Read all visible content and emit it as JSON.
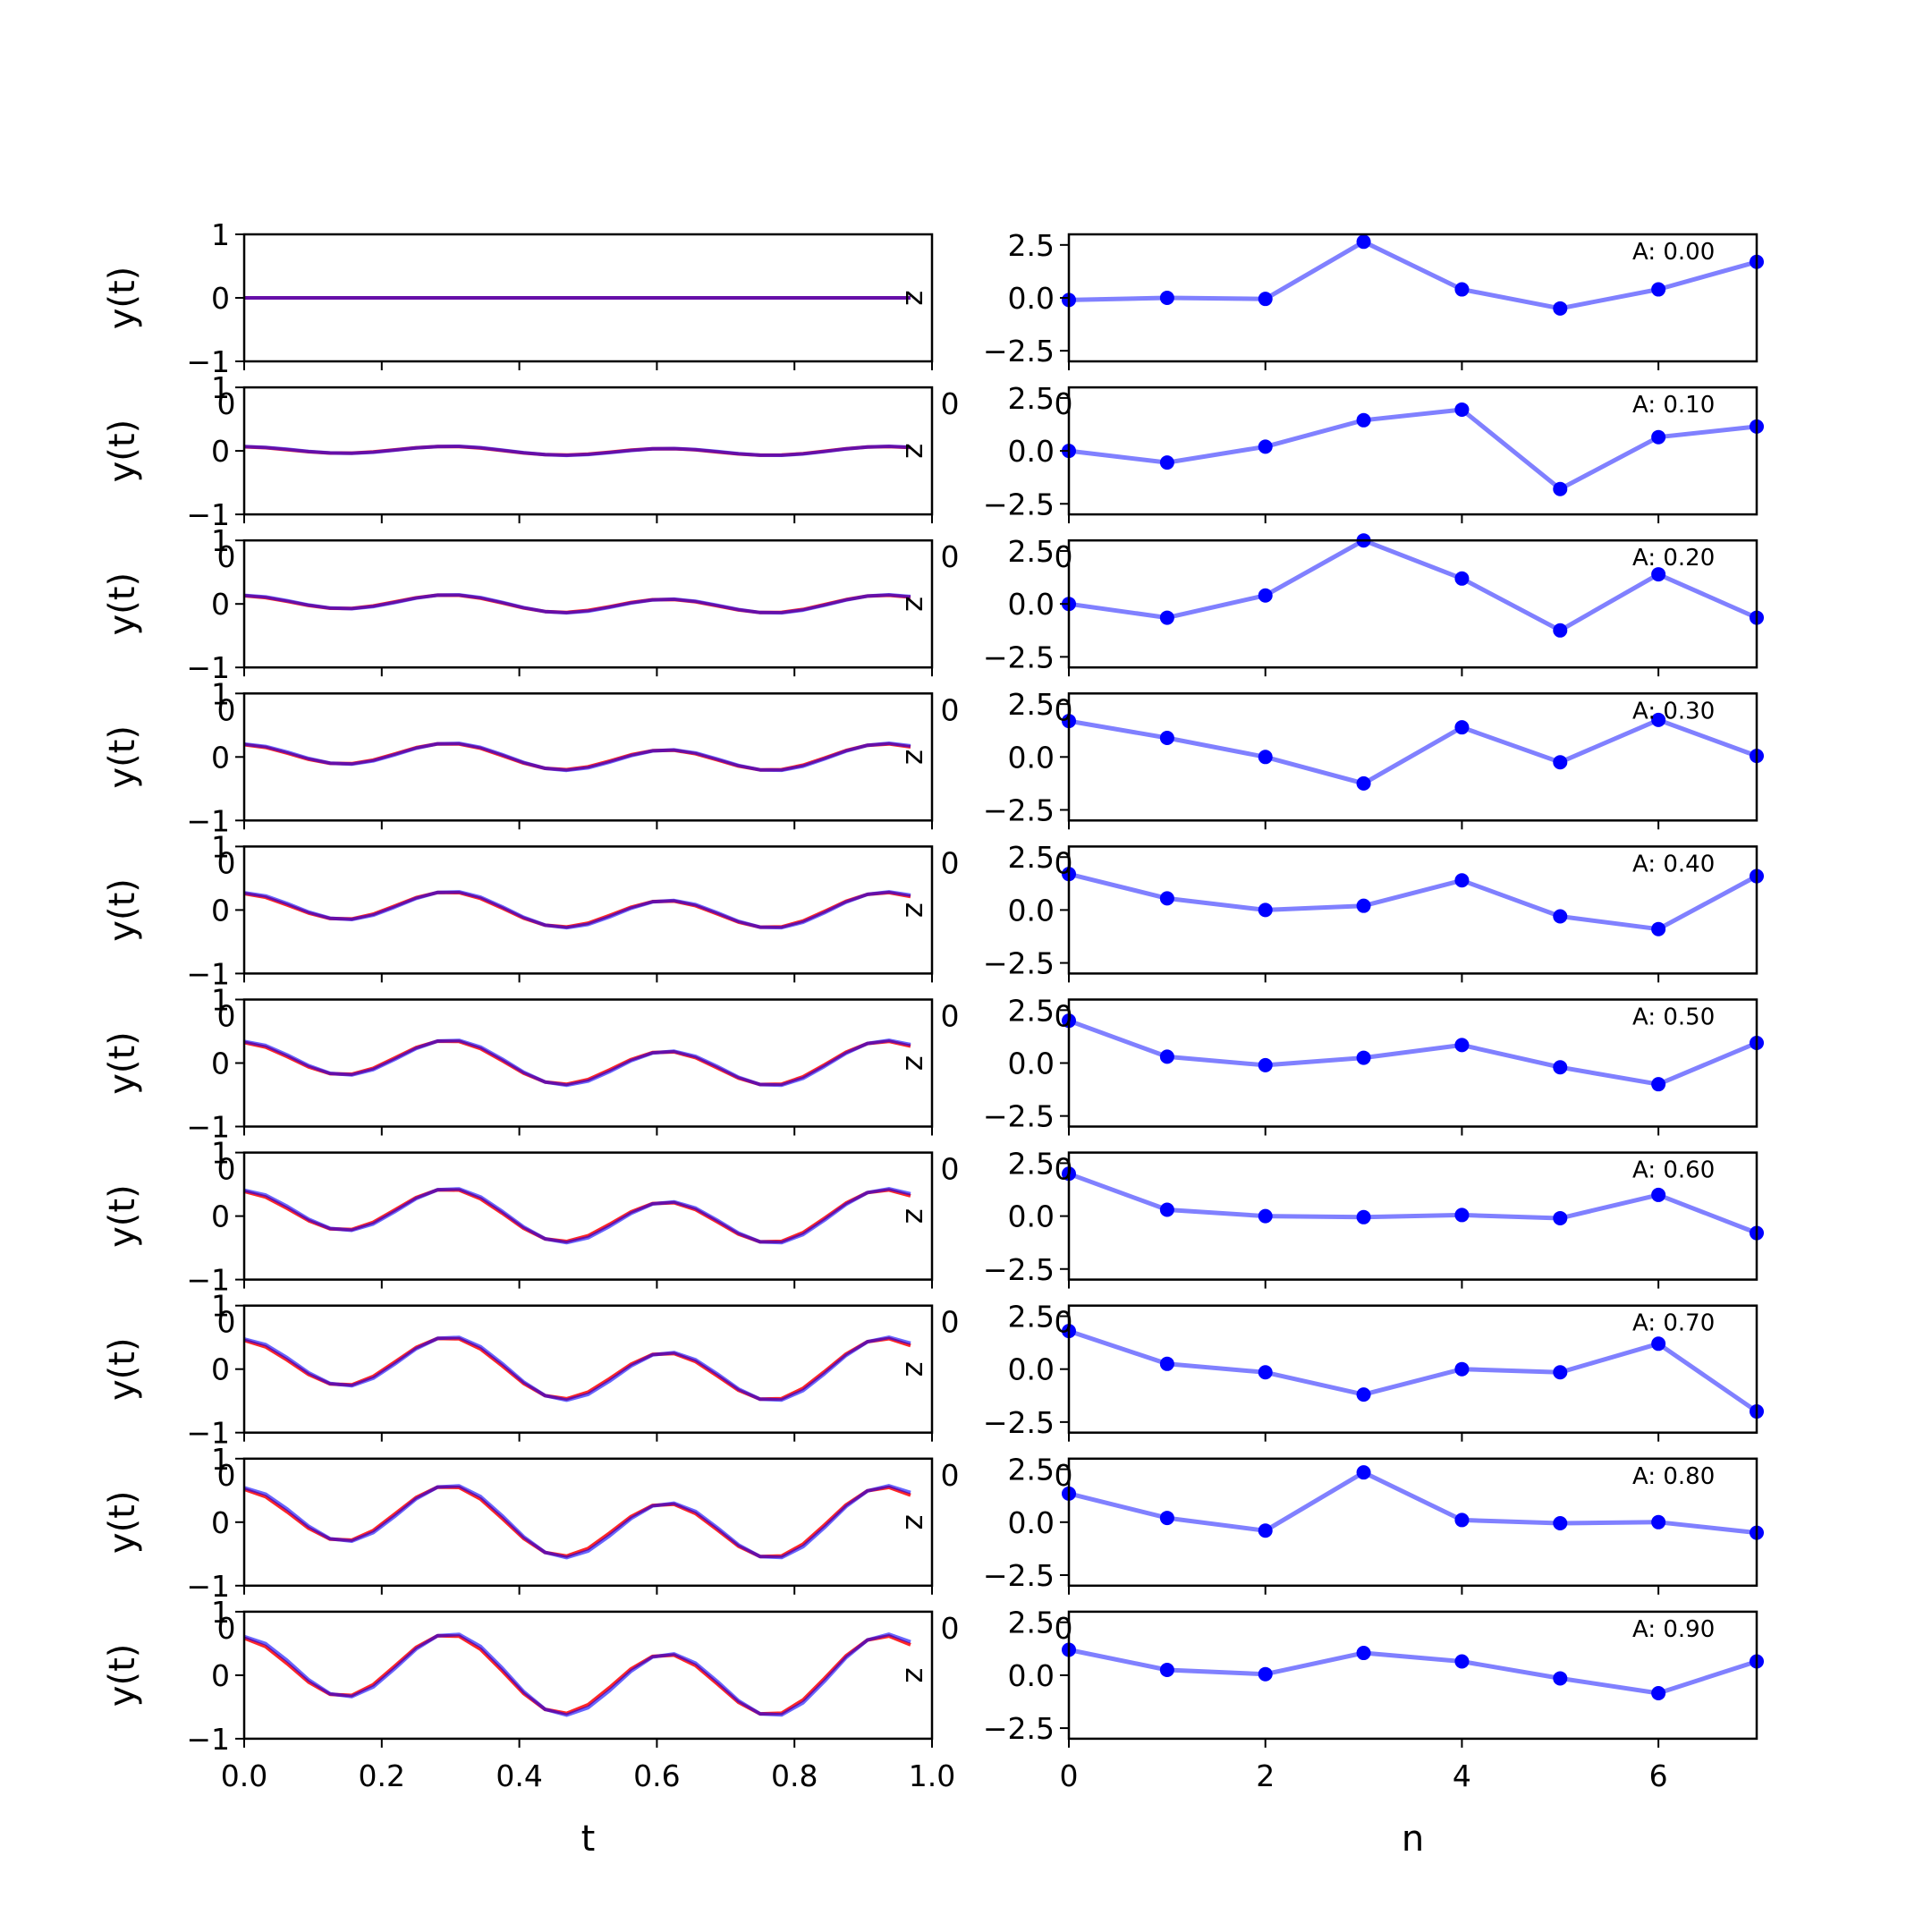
{
  "chart_data": {
    "type": "line",
    "left_panels": {
      "ylabel": "y(t)",
      "xlabel": "t",
      "xlim": [
        0,
        1
      ],
      "ylim": [
        -1,
        1
      ],
      "x_ticks": [
        0.0,
        0.2,
        0.4,
        0.6,
        0.8,
        1.0
      ],
      "x_tick_labels": [
        "0.0",
        "0.2",
        "0.4",
        "0.6",
        "0.8",
        "1.0"
      ],
      "y_ticks": [
        -1,
        0,
        1
      ],
      "y_tick_labels": [
        "−1",
        "0",
        "1"
      ],
      "series_colors": [
        "#0000ff",
        "#ff0000"
      ],
      "stray_tick_fragment": "0",
      "x": [
        0.0,
        0.03125,
        0.0625,
        0.09375,
        0.125,
        0.15625,
        0.1875,
        0.21875,
        0.25,
        0.28125,
        0.3125,
        0.34375,
        0.375,
        0.40625,
        0.4375,
        0.46875,
        0.5,
        0.53125,
        0.5625,
        0.59375,
        0.625,
        0.65625,
        0.6875,
        0.71875,
        0.75,
        0.78125,
        0.8125,
        0.84375,
        0.875,
        0.90625,
        0.9375,
        0.96875
      ]
    },
    "right_panels": {
      "xlabel": "n",
      "xlim": [
        0,
        7
      ],
      "ylim": [
        -3,
        3
      ],
      "x_ticks": [
        0,
        2,
        4,
        6
      ],
      "x_tick_labels": [
        "0",
        "2",
        "4",
        "6"
      ],
      "y_ticks": [
        -2.5,
        0.0,
        2.5
      ],
      "y_tick_labels": [
        "−2.5",
        "0.0",
        "2.5"
      ],
      "line_color": "#8080ff",
      "marker_color": "#0000ff",
      "stray_tick_fragment": "0",
      "x": [
        0,
        1,
        2,
        3,
        4,
        5,
        6,
        7
      ]
    },
    "rows": [
      {
        "annotation": "A: 0.00",
        "amplitude": 0.0,
        "values": [
          -0.1,
          0.0,
          -0.05,
          2.65,
          0.4,
          -0.5,
          0.4,
          1.7
        ]
      },
      {
        "annotation": "A: 0.10",
        "amplitude": 0.1,
        "values": [
          0.0,
          -0.55,
          0.2,
          1.45,
          1.95,
          -1.8,
          0.65,
          1.15
        ]
      },
      {
        "annotation": "A: 0.20",
        "amplitude": 0.2,
        "values": [
          0.0,
          -0.65,
          0.4,
          3.0,
          1.2,
          -1.25,
          1.4,
          -0.65
        ]
      },
      {
        "annotation": "A: 0.30",
        "amplitude": 0.3,
        "values": [
          1.7,
          0.9,
          0.0,
          -1.25,
          1.4,
          -0.25,
          1.75,
          0.05
        ]
      },
      {
        "annotation": "A: 0.40",
        "amplitude": 0.4,
        "values": [
          1.7,
          0.55,
          0.0,
          0.2,
          1.4,
          -0.3,
          -0.9,
          1.6
        ]
      },
      {
        "annotation": "A: 0.50",
        "amplitude": 0.5,
        "values": [
          2.0,
          0.3,
          -0.1,
          0.25,
          0.85,
          -0.2,
          -1.0,
          0.95
        ]
      },
      {
        "annotation": "A: 0.60",
        "amplitude": 0.6,
        "values": [
          2.0,
          0.3,
          0.0,
          -0.05,
          0.05,
          -0.1,
          1.0,
          -0.8
        ]
      },
      {
        "annotation": "A: 0.70",
        "amplitude": 0.7,
        "values": [
          1.8,
          0.25,
          -0.15,
          -1.2,
          0.0,
          -0.15,
          1.2,
          -2.0
        ]
      },
      {
        "annotation": "A: 0.80",
        "amplitude": 0.8,
        "values": [
          1.35,
          0.2,
          -0.4,
          2.35,
          0.1,
          -0.05,
          0.0,
          -0.5
        ]
      },
      {
        "annotation": "A: 0.90",
        "amplitude": 0.9,
        "values": [
          1.2,
          0.25,
          0.05,
          1.05,
          0.65,
          -0.15,
          -0.85,
          0.65
        ]
      }
    ]
  }
}
